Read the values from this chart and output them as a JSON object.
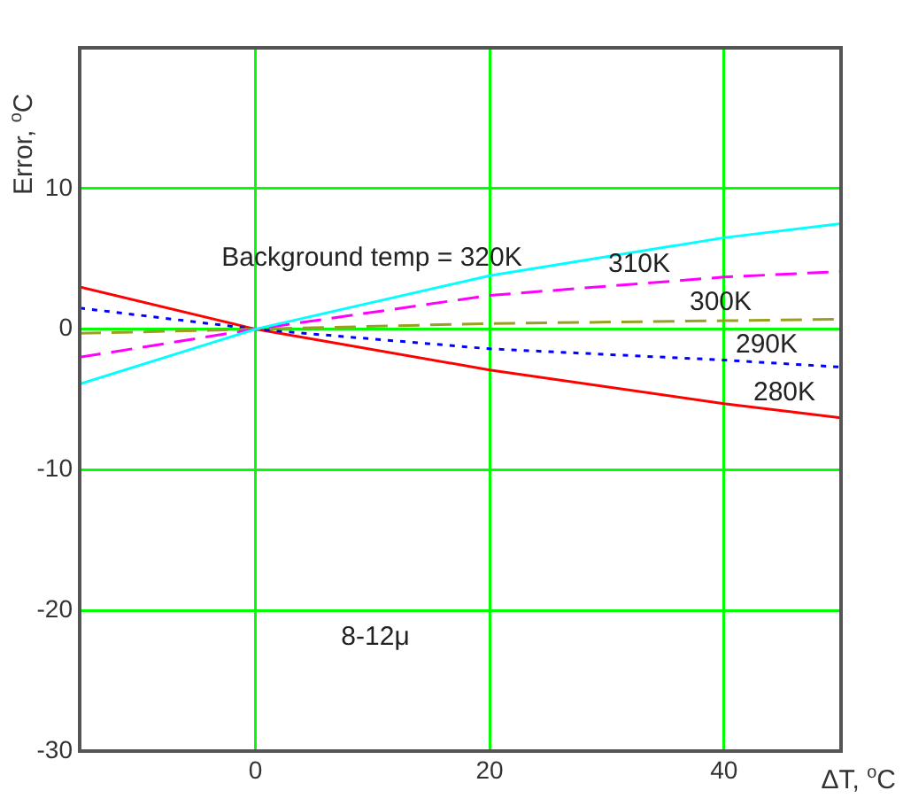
{
  "chart_data": {
    "type": "line",
    "xlabel": "ΔT, $^{o}$C",
    "ylabel": "Error, $^{o}$C",
    "x": [
      -15,
      0,
      20,
      40,
      50
    ],
    "series": [
      {
        "name": "Background temp = 320K",
        "color": "#00ffff",
        "values": [
          -3.9,
          0,
          3.8,
          6.5,
          7.5
        ],
        "line_style": "solid"
      },
      {
        "name": "310K",
        "color": "#ff00ff",
        "values": [
          -2.0,
          0,
          2.4,
          3.7,
          4.1
        ],
        "line_style": "dashed"
      },
      {
        "name": "300K",
        "color": "#99a020",
        "values": [
          -0.3,
          0,
          0.4,
          0.6,
          0.7
        ],
        "line_style": "dashed"
      },
      {
        "name": "290K",
        "color": "#0000ff",
        "values": [
          1.5,
          0,
          -1.4,
          -2.2,
          -2.7
        ],
        "line_style": "dotted"
      },
      {
        "name": "280K",
        "color": "#ff0000",
        "values": [
          3,
          0,
          -2.9,
          -5.3,
          -6.3
        ],
        "line_style": "solid"
      }
    ],
    "xlim": [
      -15,
      50
    ],
    "xticks": [
      0,
      20,
      40
    ],
    "ylim": [
      -30,
      20
    ],
    "yticks": [
      -30,
      -20,
      -10,
      0,
      10
    ],
    "grid": true,
    "legend": false,
    "marker": "none",
    "annotations": [
      "8-12μ"
    ]
  }
}
